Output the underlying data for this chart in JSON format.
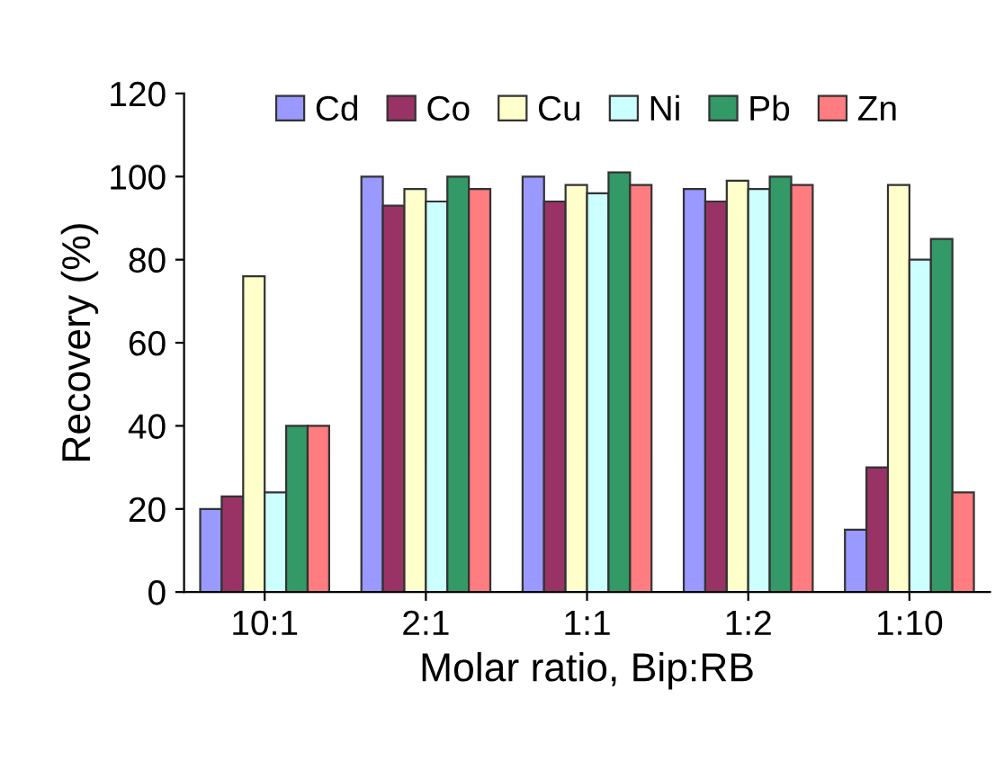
{
  "chart_data": {
    "type": "bar",
    "xlabel": "Molar ratio, Bip:RB",
    "ylabel": "Recovery (%)",
    "categories": [
      "10:1",
      "2:1",
      "1:1",
      "1:2",
      "1:10"
    ],
    "series": [
      {
        "name": "Cd",
        "color": "#9999ff",
        "values": [
          20,
          100,
          100,
          97,
          15
        ]
      },
      {
        "name": "Co",
        "color": "#993366",
        "values": [
          23,
          93,
          94,
          94,
          30
        ]
      },
      {
        "name": "Cu",
        "color": "#ffffcc",
        "values": [
          76,
          97,
          98,
          99,
          98
        ]
      },
      {
        "name": "Ni",
        "color": "#ccffff",
        "values": [
          24,
          94,
          96,
          97,
          80
        ]
      },
      {
        "name": "Pb",
        "color": "#339966",
        "values": [
          40,
          100,
          101,
          100,
          85
        ]
      },
      {
        "name": "Zn",
        "color": "#ff7c80",
        "values": [
          40,
          97,
          98,
          98,
          24
        ]
      }
    ],
    "ylim": [
      0,
      120
    ],
    "yticks": [
      0,
      20,
      40,
      60,
      80,
      100,
      120
    ],
    "grid": false,
    "legend": "top"
  }
}
